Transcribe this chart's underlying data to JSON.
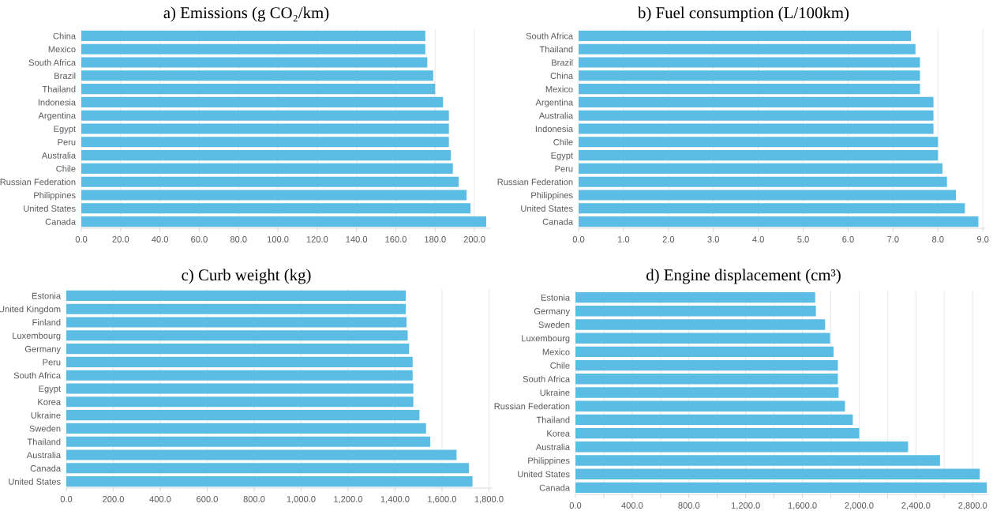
{
  "chart_data": [
    {
      "type": "bar",
      "orientation": "horizontal",
      "title": "a) Emissions (g CO₂/km)",
      "categories": [
        "China",
        "Mexico",
        "South Africa",
        "Brazil",
        "Thailand",
        "Indonesia",
        "Argentina",
        "Egypt",
        "Peru",
        "Australia",
        "Chile",
        "Russian Federation",
        "Philippines",
        "United States",
        "Canada"
      ],
      "values": [
        175,
        175,
        176,
        179,
        180,
        184,
        187,
        187,
        187,
        188,
        189,
        192,
        196,
        198,
        206
      ],
      "color": "#5bbce4",
      "xlim": [
        0,
        208
      ],
      "xticks": [
        {
          "value": 0,
          "label": "0.0"
        },
        {
          "value": 20,
          "label": "20.0"
        },
        {
          "value": 40,
          "label": "40.0"
        },
        {
          "value": 60,
          "label": "60.0"
        },
        {
          "value": 80,
          "label": "80.0"
        },
        {
          "value": 100,
          "label": "100.0"
        },
        {
          "value": 120,
          "label": "120.0"
        },
        {
          "value": 140,
          "label": "140.0"
        },
        {
          "value": 160,
          "label": "160.0"
        },
        {
          "value": 180,
          "label": "180.0"
        },
        {
          "value": 200,
          "label": "200.0"
        }
      ],
      "grid": "x"
    },
    {
      "type": "bar",
      "orientation": "horizontal",
      "title": "b) Fuel consumption (L/100km)",
      "categories": [
        "South Africa",
        "Thailand",
        "Brazil",
        "China",
        "Mexico",
        "Argentina",
        "Australia",
        "Indonesia",
        "Chile",
        "Egypt",
        "Peru",
        "Russian Federation",
        "Philippines",
        "United States",
        "Canada"
      ],
      "values": [
        7.4,
        7.5,
        7.6,
        7.6,
        7.6,
        7.9,
        7.9,
        7.9,
        8.0,
        8.0,
        8.1,
        8.2,
        8.4,
        8.6,
        8.9
      ],
      "color": "#5bbce4",
      "xlim": [
        0,
        9.05
      ],
      "xticks": [
        {
          "value": 0,
          "label": "0.0"
        },
        {
          "value": 1,
          "label": "1.0"
        },
        {
          "value": 2,
          "label": "2.0"
        },
        {
          "value": 3,
          "label": "3.0"
        },
        {
          "value": 4,
          "label": "4.0"
        },
        {
          "value": 5,
          "label": "5.0"
        },
        {
          "value": 6,
          "label": "6.0"
        },
        {
          "value": 7,
          "label": "7.0"
        },
        {
          "value": 8,
          "label": "8.0"
        },
        {
          "value": 9,
          "label": "9.0"
        }
      ],
      "grid": "x"
    },
    {
      "type": "bar",
      "orientation": "horizontal",
      "title": "c) Curb weight (kg)",
      "categories": [
        "Estonia",
        "United Kingdom",
        "Finland",
        "Luxembourg",
        "Germany",
        "Peru",
        "South Africa",
        "Egypt",
        "Korea",
        "Ukraine",
        "Sweden",
        "Thailand",
        "Australia",
        "Canada",
        "United States"
      ],
      "values": [
        1446,
        1446,
        1449,
        1454,
        1460,
        1475,
        1475,
        1478,
        1478,
        1504,
        1532,
        1550,
        1662,
        1715,
        1730
      ],
      "color": "#5bbce4",
      "xlim": [
        0,
        1812
      ],
      "xticks": [
        {
          "value": 0,
          "label": "0.0"
        },
        {
          "value": 200,
          "label": "200.0"
        },
        {
          "value": 400,
          "label": "400.0"
        },
        {
          "value": 600,
          "label": "600.0"
        },
        {
          "value": 800,
          "label": "800.0"
        },
        {
          "value": 1000,
          "label": "1,000.0"
        },
        {
          "value": 1200,
          "label": "1,200.0"
        },
        {
          "value": 1400,
          "label": "1,400.0"
        },
        {
          "value": 1600,
          "label": "1,600.0"
        },
        {
          "value": 1800,
          "label": "1,800.0"
        }
      ],
      "grid": "x"
    },
    {
      "type": "bar",
      "orientation": "horizontal",
      "title": "d) Engine displacement (cm³)",
      "categories": [
        "Estonia",
        "Germany",
        "Sweden",
        "Luxembourg",
        "Mexico",
        "Chile",
        "South Africa",
        "Ukraine",
        "Russian Federation",
        "Thailand",
        "Korea",
        "Australia",
        "Philippines",
        "United States",
        "Canada"
      ],
      "values": [
        1690,
        1695,
        1760,
        1795,
        1820,
        1850,
        1850,
        1855,
        1900,
        1955,
        2000,
        2345,
        2570,
        2850,
        2900
      ],
      "color": "#5bbce4",
      "xlim": [
        0,
        2910
      ],
      "xticks": [
        {
          "value": 0,
          "label": "0.0"
        },
        {
          "value": 200,
          "label": null
        },
        {
          "value": 400,
          "label": "400.0"
        },
        {
          "value": 600,
          "label": null
        },
        {
          "value": 800,
          "label": "800.0"
        },
        {
          "value": 1000,
          "label": null
        },
        {
          "value": 1200,
          "label": "1,200.0"
        },
        {
          "value": 1400,
          "label": null
        },
        {
          "value": 1600,
          "label": "1,600.0"
        },
        {
          "value": 1800,
          "label": null
        },
        {
          "value": 2000,
          "label": "2,000.0"
        },
        {
          "value": 2200,
          "label": null
        },
        {
          "value": 2400,
          "label": "2,400.0"
        },
        {
          "value": 2600,
          "label": null
        },
        {
          "value": 2800,
          "label": "2,800.0"
        }
      ],
      "grid": "x"
    }
  ]
}
